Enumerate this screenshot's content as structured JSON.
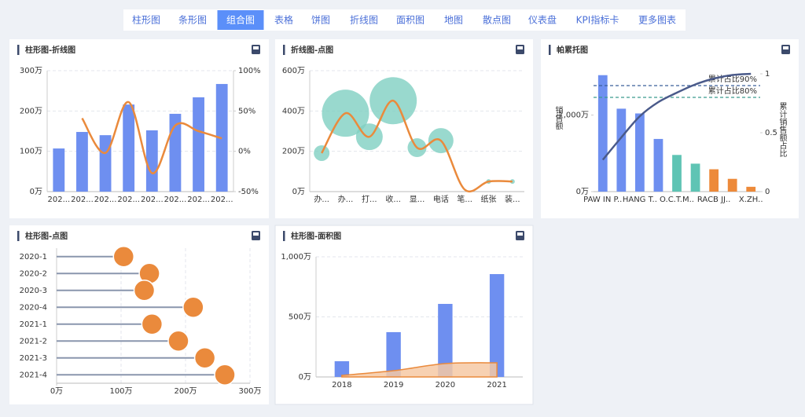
{
  "tabs": [
    {
      "label": "柱形图"
    },
    {
      "label": "条形图"
    },
    {
      "label": "组合图",
      "active": true
    },
    {
      "label": "表格"
    },
    {
      "label": "饼图"
    },
    {
      "label": "折线图"
    },
    {
      "label": "面积图"
    },
    {
      "label": "地图"
    },
    {
      "label": "散点图"
    },
    {
      "label": "仪表盘"
    },
    {
      "label": "KPI指标卡"
    },
    {
      "label": "更多图表"
    }
  ],
  "chart_data": [
    {
      "type": "bar_line",
      "title": "柱形图-折线图",
      "categories": [
        "202...",
        "202...",
        "202...",
        "202...",
        "202...",
        "202...",
        "202...",
        "202..."
      ],
      "series": [
        {
          "type": "bar",
          "color": "#6e8ff0",
          "values": [
            107,
            148,
            140,
            216,
            152,
            193,
            234,
            267
          ]
        },
        {
          "type": "line",
          "axis": "y2",
          "color": "#ea8a3c",
          "values": [
            null,
            41,
            -2,
            61,
            -27,
            32,
            25,
            16
          ]
        }
      ],
      "ylim": [
        0,
        300
      ],
      "yticks": [
        {
          "value": 0,
          "label": "0万"
        },
        {
          "value": 100,
          "label": "100万"
        },
        {
          "value": 200,
          "label": "200万"
        },
        {
          "value": 300,
          "label": "300万"
        }
      ],
      "y2lim": [
        -50,
        100
      ],
      "y2ticks": [
        {
          "value": -50,
          "label": "-50%"
        },
        {
          "value": 0,
          "label": "0%"
        },
        {
          "value": 50,
          "label": "50%"
        },
        {
          "value": 100,
          "label": "100%"
        }
      ],
      "grid": true
    },
    {
      "type": "line_bubble",
      "title": "折线图-点图",
      "categories": [
        "办...",
        "办...",
        "打...",
        "收...",
        "显...",
        "电话",
        "笔...",
        "纸张",
        "装..."
      ],
      "values": [
        191,
        389,
        272,
        451,
        218,
        253,
        10,
        50,
        50
      ],
      "sizes": [
        10,
        30,
        17,
        30,
        12,
        16,
        0,
        3,
        3
      ],
      "line_color": "#ea8a3c",
      "bubble_color": "#7fcfc2",
      "ylim": [
        0,
        600
      ],
      "yticks": [
        {
          "value": 0,
          "label": "0万"
        },
        {
          "value": 200,
          "label": "200万"
        },
        {
          "value": 400,
          "label": "400万"
        },
        {
          "value": 600,
          "label": "600万"
        }
      ],
      "grid": true
    },
    {
      "type": "pareto",
      "title": "帕累托图",
      "categories": [
        "PAW IN P..",
        null,
        "HANG T..",
        null,
        "O.C.T.M..",
        null,
        "RACB JJ..",
        null,
        "X.ZH.."
      ],
      "values": [
        1521,
        1083,
        1021,
        688,
        479,
        365,
        292,
        167,
        63
      ],
      "colors": [
        "#6e8ff0",
        "#6e8ff0",
        "#6e8ff0",
        "#6e8ff0",
        "#5fc4b4",
        "#5fc4b4",
        "#ed8a3a",
        "#ed8a3a",
        "#ed8a3a"
      ],
      "cumulative": [
        0.27,
        0.46,
        0.64,
        0.76,
        0.84,
        0.91,
        0.96,
        0.99,
        1
      ],
      "line_color": "#4a5a8a",
      "ylabel": "销售额",
      "y2label": "累计销售额占比",
      "ylim": [
        0,
        1600
      ],
      "yticks": [
        {
          "value": 0,
          "label": "0万"
        },
        {
          "value": 1000,
          "label": "1,000万"
        }
      ],
      "y2lim": [
        0,
        1.04
      ],
      "y2ticks": [
        0,
        0.5,
        1
      ],
      "annotations": [
        {
          "label": "累计占比90%",
          "value": 0.9,
          "color": "#3b5f9a"
        },
        {
          "label": "累计占比80%",
          "value": 0.8,
          "color": "#3a9a8e"
        }
      ]
    },
    {
      "type": "lollipop",
      "title": "柱形图-点图",
      "categories": [
        "2020-1",
        "2020-2",
        "2020-3",
        "2020-4",
        "2021-1",
        "2021-2",
        "2021-3",
        "2021-4"
      ],
      "values": [
        104,
        144,
        136,
        212,
        148,
        189,
        230,
        261
      ],
      "line_color": "#8a96ad",
      "dot_color": "#ea8a3c",
      "xlim": [
        0,
        300
      ],
      "xticks": [
        {
          "value": 0,
          "label": "0万"
        },
        {
          "value": 100,
          "label": "100万"
        },
        {
          "value": 200,
          "label": "200万"
        },
        {
          "value": 300,
          "label": "300万"
        }
      ],
      "grid": true
    },
    {
      "type": "bar_area",
      "title": "柱形图-面积图",
      "categories": [
        "2018",
        "2019",
        "2020",
        "2021"
      ],
      "series": [
        {
          "type": "bar",
          "color": "#6e8ff0",
          "values": [
            131,
            373,
            608,
            856
          ]
        },
        {
          "type": "area",
          "color": "#ea8a3c",
          "fill": "#f6c9a4",
          "values": [
            13,
            52,
            111,
            118
          ]
        }
      ],
      "ylim": [
        0,
        1000
      ],
      "yticks": [
        {
          "value": 0,
          "label": "0万"
        },
        {
          "value": 500,
          "label": "500万"
        },
        {
          "value": 1000,
          "label": "1,000万"
        }
      ],
      "grid": true
    }
  ]
}
